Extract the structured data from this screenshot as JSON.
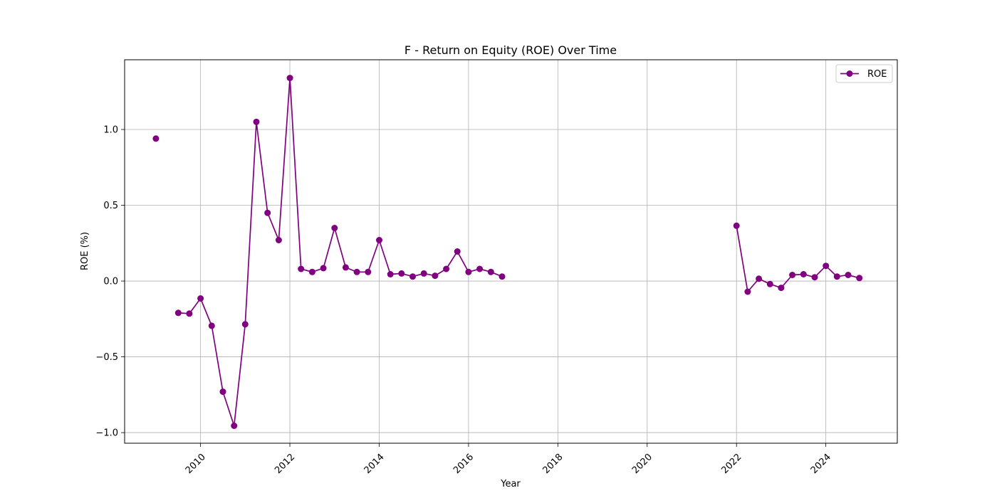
{
  "chart_data": {
    "type": "line",
    "title": "F - Return on Equity (ROE) Over Time",
    "xlabel": "Year",
    "ylabel": "ROE (%)",
    "xlim": [
      2008.3,
      2025.6
    ],
    "ylim": [
      -1.07,
      1.46
    ],
    "xticks": [
      2010,
      2012,
      2014,
      2016,
      2018,
      2020,
      2022,
      2024
    ],
    "yticks": [
      -1.0,
      -0.5,
      0.0,
      0.5,
      1.0
    ],
    "ytick_labels": [
      "−1.0",
      "−0.5",
      "0.0",
      "0.5",
      "1.0"
    ],
    "grid": true,
    "legend_position": "top-right",
    "series": [
      {
        "name": "ROE",
        "color": "#800080",
        "segments": [
          [
            {
              "x": 2009.0,
              "y": 0.94
            }
          ],
          [
            {
              "x": 2009.5,
              "y": -0.21
            },
            {
              "x": 2009.75,
              "y": -0.215
            },
            {
              "x": 2010.0,
              "y": -0.115
            },
            {
              "x": 2010.25,
              "y": -0.295
            },
            {
              "x": 2010.5,
              "y": -0.73
            },
            {
              "x": 2010.75,
              "y": -0.955
            },
            {
              "x": 2011.0,
              "y": -0.285
            },
            {
              "x": 2011.25,
              "y": 1.05
            },
            {
              "x": 2011.5,
              "y": 0.45
            },
            {
              "x": 2011.75,
              "y": 0.27
            },
            {
              "x": 2012.0,
              "y": 1.34
            },
            {
              "x": 2012.25,
              "y": 0.08
            },
            {
              "x": 2012.5,
              "y": 0.06
            },
            {
              "x": 2012.75,
              "y": 0.085
            },
            {
              "x": 2013.0,
              "y": 0.35
            },
            {
              "x": 2013.25,
              "y": 0.09
            },
            {
              "x": 2013.5,
              "y": 0.06
            },
            {
              "x": 2013.75,
              "y": 0.06
            },
            {
              "x": 2014.0,
              "y": 0.27
            },
            {
              "x": 2014.25,
              "y": 0.045
            },
            {
              "x": 2014.5,
              "y": 0.05
            },
            {
              "x": 2014.75,
              "y": 0.03
            },
            {
              "x": 2015.0,
              "y": 0.05
            },
            {
              "x": 2015.25,
              "y": 0.035
            },
            {
              "x": 2015.5,
              "y": 0.08
            },
            {
              "x": 2015.75,
              "y": 0.195
            },
            {
              "x": 2016.0,
              "y": 0.06
            },
            {
              "x": 2016.25,
              "y": 0.08
            },
            {
              "x": 2016.5,
              "y": 0.06
            },
            {
              "x": 2016.75,
              "y": 0.03
            }
          ],
          [
            {
              "x": 2022.0,
              "y": 0.365
            },
            {
              "x": 2022.25,
              "y": -0.07
            },
            {
              "x": 2022.5,
              "y": 0.015
            },
            {
              "x": 2022.75,
              "y": -0.02
            },
            {
              "x": 2023.0,
              "y": -0.045
            },
            {
              "x": 2023.25,
              "y": 0.04
            },
            {
              "x": 2023.5,
              "y": 0.045
            },
            {
              "x": 2023.75,
              "y": 0.025
            },
            {
              "x": 2024.0,
              "y": 0.1
            },
            {
              "x": 2024.25,
              "y": 0.03
            },
            {
              "x": 2024.5,
              "y": 0.04
            },
            {
              "x": 2024.75,
              "y": 0.02
            }
          ]
        ]
      }
    ]
  }
}
